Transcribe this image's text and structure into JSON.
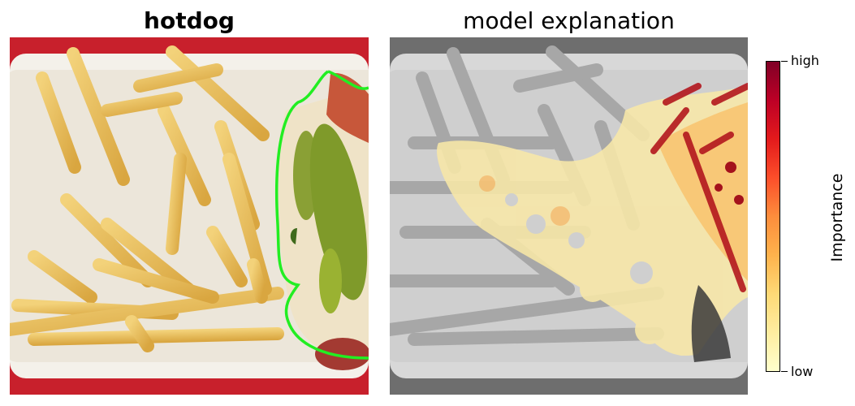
{
  "left_panel": {
    "title": "hotdog"
  },
  "right_panel": {
    "title": "model explanation"
  },
  "colorbar": {
    "label": "Importance",
    "high_label": "high",
    "low_label": "low",
    "colormap": [
      "#ffffcc",
      "#ffeda0",
      "#fed976",
      "#feb24c",
      "#fd8d3c",
      "#fc4e2a",
      "#e31a1c",
      "#bd0026",
      "#800026"
    ]
  },
  "colors": {
    "segmentation_outline": "#22ee22",
    "tray_red": "#c8202c"
  },
  "icons": {
    "photo": "fries-and-hotdog-photo",
    "heatmap": "importance-heatmap-overlay"
  }
}
